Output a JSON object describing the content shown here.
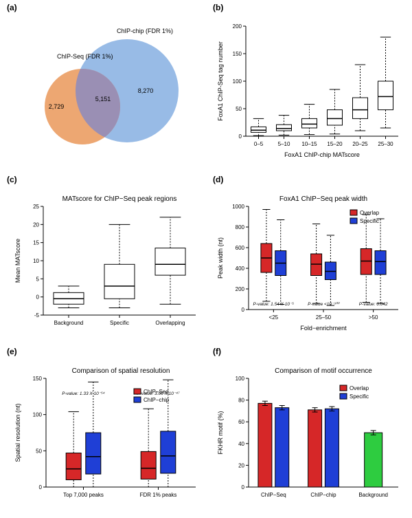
{
  "labels": {
    "a": "(a)",
    "b": "(b)",
    "c": "(c)",
    "d": "(d)",
    "e": "(e)",
    "f": "(f)"
  },
  "panel_a": {
    "type": "venn",
    "left_label": "ChIP-Seq (FDR 1%)",
    "right_label": "ChIP-chip (FDR 1%)",
    "left_value": "2,729",
    "overlap_value": "5,151",
    "right_value": "8,270",
    "left_color": "#ec9f66",
    "right_color": "#8fb5e4",
    "overlap_color": "#9a8fb4"
  },
  "panel_b": {
    "type": "boxplot",
    "xlabel": "FoxA1 ChIP-chip MATscore",
    "ylabel": "FoxA1 ChIP-Seq tag number",
    "categories": [
      "0–5",
      "5–10",
      "10–15",
      "15–20",
      "20–25",
      "25–30"
    ],
    "ylim": [
      0,
      200
    ],
    "ytick_step": 50,
    "boxes": [
      {
        "wl": 1,
        "q1": 7,
        "med": 11,
        "q3": 17,
        "wh": 32
      },
      {
        "wl": 2,
        "q1": 10,
        "med": 14,
        "q3": 21,
        "wh": 38
      },
      {
        "wl": 3,
        "q1": 15,
        "med": 22,
        "q3": 32,
        "wh": 58
      },
      {
        "wl": 4,
        "q1": 20,
        "med": 32,
        "q3": 48,
        "wh": 85
      },
      {
        "wl": 10,
        "q1": 32,
        "med": 48,
        "q3": 70,
        "wh": 130
      },
      {
        "wl": 15,
        "q1": 48,
        "med": 72,
        "q3": 100,
        "wh": 180
      }
    ],
    "box_fill": "#ffffff",
    "box_stroke": "#000000",
    "axis_fontsize": 9,
    "tick_fontsize": 8
  },
  "panel_c": {
    "type": "boxplot",
    "title": "MATscore for ChIP−Seq peak regions",
    "ylabel": "Mean MATscore",
    "categories": [
      "Background",
      "Specific",
      "Overlapping"
    ],
    "ylim": [
      -5,
      25
    ],
    "ytick_step": 5,
    "boxes": [
      {
        "wl": -3,
        "q1": -2,
        "med": -0.5,
        "q3": 1.2,
        "wh": 3
      },
      {
        "wl": -3,
        "q1": -0.5,
        "med": 3,
        "q3": 9,
        "wh": 20
      },
      {
        "wl": -2,
        "q1": 6,
        "med": 9,
        "q3": 13.5,
        "wh": 22
      }
    ],
    "box_fill": "#ffffff",
    "box_stroke": "#000000",
    "axis_fontsize": 9,
    "tick_fontsize": 8,
    "title_fontsize": 10
  },
  "panel_d": {
    "type": "grouped_boxplot",
    "title": "FoxA1 ChIP−Seq peak width",
    "xlabel": "Fold−enrichment",
    "ylabel": "Peak width (nt)",
    "groups": [
      "<25",
      "25–50",
      ">50"
    ],
    "series_names": [
      "Overlap",
      "Specific"
    ],
    "series_colors": [
      "#d62728",
      "#1f3fd6"
    ],
    "ylim": [
      0,
      1000
    ],
    "ytick_step": 200,
    "pvalues": [
      "P-value: 1.54 X 10⁻⁵",
      "P-value <10⁻³⁰⁰",
      "P-value: 0.042"
    ],
    "boxes": [
      [
        {
          "wl": 80,
          "q1": 360,
          "med": 500,
          "q3": 640,
          "wh": 970
        },
        {
          "wl": 50,
          "q1": 330,
          "med": 450,
          "q3": 570,
          "wh": 870
        }
      ],
      [
        {
          "wl": 60,
          "q1": 330,
          "med": 440,
          "q3": 540,
          "wh": 830
        },
        {
          "wl": 40,
          "q1": 290,
          "med": 370,
          "q3": 460,
          "wh": 720
        }
      ],
      [
        {
          "wl": 70,
          "q1": 340,
          "med": 470,
          "q3": 590,
          "wh": 920
        },
        {
          "wl": 60,
          "q1": 340,
          "med": 465,
          "q3": 570,
          "wh": 880
        }
      ]
    ],
    "title_fontsize": 10,
    "axis_fontsize": 9,
    "tick_fontsize": 8,
    "legend_fontsize": 8
  },
  "panel_e": {
    "type": "grouped_boxplot",
    "title": "Comparison of spatial resolution",
    "ylabel": "Spatial resolution (nt)",
    "groups": [
      "Top 7,000 peaks",
      "FDR 1% peaks"
    ],
    "series_names": [
      "ChIP−Seq",
      "ChIP−chip"
    ],
    "series_colors": [
      "#d62728",
      "#1f3fd6"
    ],
    "ylim": [
      0,
      150
    ],
    "ytick_step": 50,
    "pvalues": [
      "P-value: 1.33 X 10⁻⁵⁴",
      "P-value: 3.06 X 10⁻⁴⁷"
    ],
    "boxes": [
      [
        {
          "wl": 0,
          "q1": 10,
          "med": 25,
          "q3": 47,
          "wh": 104
        },
        {
          "wl": 0,
          "q1": 18,
          "med": 42,
          "q3": 75,
          "wh": 145
        }
      ],
      [
        {
          "wl": 0,
          "q1": 11,
          "med": 26,
          "q3": 49,
          "wh": 108
        },
        {
          "wl": 0,
          "q1": 19,
          "med": 43,
          "q3": 77,
          "wh": 148
        }
      ]
    ],
    "title_fontsize": 10,
    "axis_fontsize": 9,
    "tick_fontsize": 8,
    "legend_fontsize": 8
  },
  "panel_f": {
    "type": "bar",
    "title": "Comparison of motif occurrence",
    "ylabel": "FKHR motif (%)",
    "categories": [
      "ChIP−Seq",
      "ChIP−chip",
      "Background"
    ],
    "series_names": [
      "Overlap",
      "Specific"
    ],
    "series_colors": [
      "#d62728",
      "#1f3fd6"
    ],
    "bg_color": "#2ecc40",
    "ylim": [
      0,
      100
    ],
    "ytick_step": 20,
    "values": [
      [
        77,
        73
      ],
      [
        71,
        72
      ],
      [
        50
      ]
    ],
    "errors": [
      [
        2,
        2
      ],
      [
        2,
        2
      ],
      [
        2
      ]
    ],
    "title_fontsize": 10,
    "axis_fontsize": 9,
    "tick_fontsize": 8,
    "legend_fontsize": 8
  }
}
